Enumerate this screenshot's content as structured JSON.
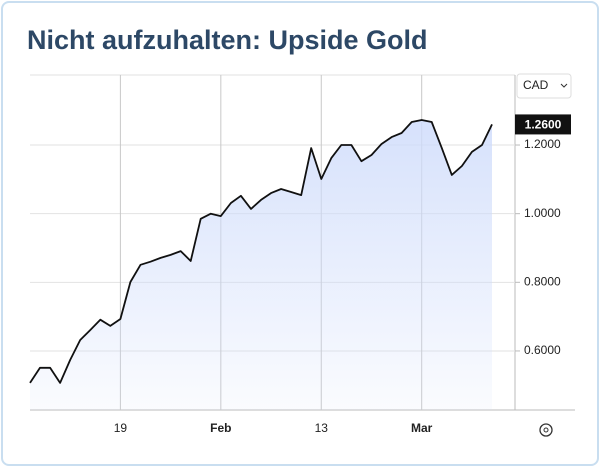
{
  "chart_data": {
    "type": "line",
    "title": "Nicht aufzuhalten: Upside Gold",
    "currency": "CAD",
    "categories": [
      null,
      null,
      null,
      null,
      null,
      null,
      null,
      null,
      null,
      "19",
      null,
      null,
      null,
      null,
      null,
      null,
      null,
      null,
      null,
      "Feb",
      null,
      null,
      null,
      null,
      null,
      null,
      null,
      null,
      null,
      "13",
      null,
      null,
      null,
      null,
      null,
      null,
      null,
      null,
      null,
      "Mar",
      null,
      null,
      null,
      null,
      null,
      null,
      null
    ],
    "values": [
      0.507,
      0.551,
      0.551,
      0.507,
      0.574,
      0.632,
      0.661,
      0.691,
      0.673,
      0.693,
      0.801,
      0.851,
      0.86,
      0.871,
      0.88,
      0.891,
      0.862,
      0.985,
      1.0,
      0.993,
      1.031,
      1.052,
      1.014,
      1.04,
      1.06,
      1.072,
      1.063,
      1.054,
      1.191,
      1.101,
      1.162,
      1.2,
      1.2,
      1.153,
      1.171,
      1.203,
      1.223,
      1.235,
      1.267,
      1.273,
      1.267,
      1.191,
      1.113,
      1.139,
      1.18,
      1.2,
      1.26
    ],
    "value_labels": [
      null,
      null,
      null,
      null,
      null,
      null,
      null,
      null,
      null,
      null,
      null,
      null,
      null,
      null,
      null,
      null,
      null,
      null,
      null,
      null,
      null,
      null,
      null,
      null,
      null,
      null,
      null,
      null,
      null,
      null,
      null,
      null,
      null,
      null,
      null,
      null,
      null,
      null,
      null,
      null,
      null,
      null,
      null,
      null,
      null,
      null,
      "1.2600"
    ],
    "color": "#111111",
    "fill": "#cfdcfb",
    "ylim": [
      0.428,
      1.404
    ],
    "yticks": [
      {
        "value": 0.6,
        "label": "0.6000"
      },
      {
        "value": 0.8,
        "label": "0.8000"
      },
      {
        "value": 1.0,
        "label": "1.0000"
      },
      {
        "value": 1.2,
        "label": "1.2000"
      }
    ],
    "grid": true
  }
}
